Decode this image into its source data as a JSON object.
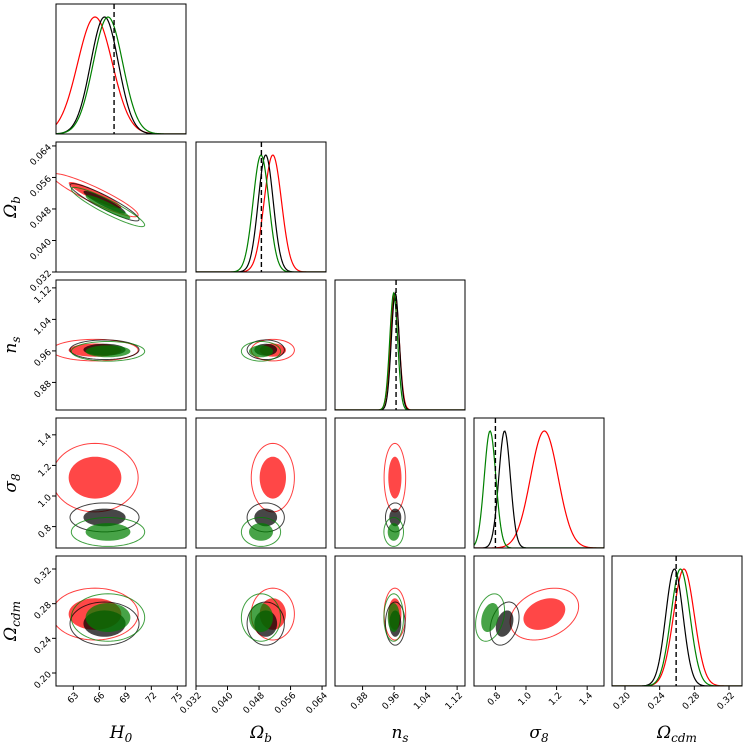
{
  "chart_data": {
    "type": "corner",
    "title": "",
    "parameters": [
      {
        "key": "H0",
        "label": "H",
        "sub": "0",
        "range": [
          61,
          76
        ],
        "ticks": [
          "63",
          "66",
          "69",
          "72",
          "75"
        ],
        "tickvals": [
          63,
          66,
          69,
          72,
          75
        ],
        "truth": 67.7
      },
      {
        "key": "Ob",
        "label": "Ω",
        "sub": "b",
        "range": [
          0.032,
          0.065
        ],
        "ticks": [
          "0.032",
          "0.040",
          "0.048",
          "0.056",
          "0.064"
        ],
        "tickvals": [
          0.032,
          0.04,
          0.048,
          0.056,
          0.064
        ],
        "truth": 0.0486
      },
      {
        "key": "ns",
        "label": "n",
        "sub": "s",
        "range": [
          0.81,
          1.14
        ],
        "ticks": [
          "0.88",
          "0.96",
          "1.04",
          "1.12"
        ],
        "tickvals": [
          0.88,
          0.96,
          1.04,
          1.12
        ],
        "truth": 0.965
      },
      {
        "key": "s8",
        "label": "σ",
        "sub": "8",
        "range": [
          0.66,
          1.51
        ],
        "ticks": [
          "0.8",
          "1.0",
          "1.2",
          "1.4"
        ],
        "tickvals": [
          0.8,
          1.0,
          1.2,
          1.4
        ],
        "truth": 0.8
      },
      {
        "key": "Oc",
        "label": "Ω",
        "sub": "cdm",
        "range": [
          0.185,
          0.335
        ],
        "ticks": [
          "0.20",
          "0.24",
          "0.28",
          "0.32"
        ],
        "tickvals": [
          0.2,
          0.24,
          0.28,
          0.32
        ],
        "truth": 0.259
      }
    ],
    "series": [
      {
        "name": "red",
        "color": "#ff0000",
        "mean": [
          65.5,
          0.0515,
          0.962,
          1.12,
          0.268
        ],
        "sd": [
          2.0,
          0.0022,
          0.011,
          0.09,
          0.012
        ]
      },
      {
        "name": "black",
        "color": "#000000",
        "mean": [
          66.6,
          0.0497,
          0.963,
          0.86,
          0.257
        ],
        "sd": [
          1.6,
          0.0019,
          0.01,
          0.038,
          0.01
        ]
      },
      {
        "name": "green",
        "color": "#008000",
        "mean": [
          67.0,
          0.0485,
          0.959,
          0.765,
          0.264
        ],
        "sd": [
          1.7,
          0.002,
          0.01,
          0.038,
          0.011
        ]
      }
    ],
    "correlations": [
      {
        "pair": [
          "Ob",
          "H0"
        ],
        "rho": -0.92
      },
      {
        "pair": [
          "Oc",
          "s8"
        ],
        "rho": 0.3
      }
    ]
  }
}
